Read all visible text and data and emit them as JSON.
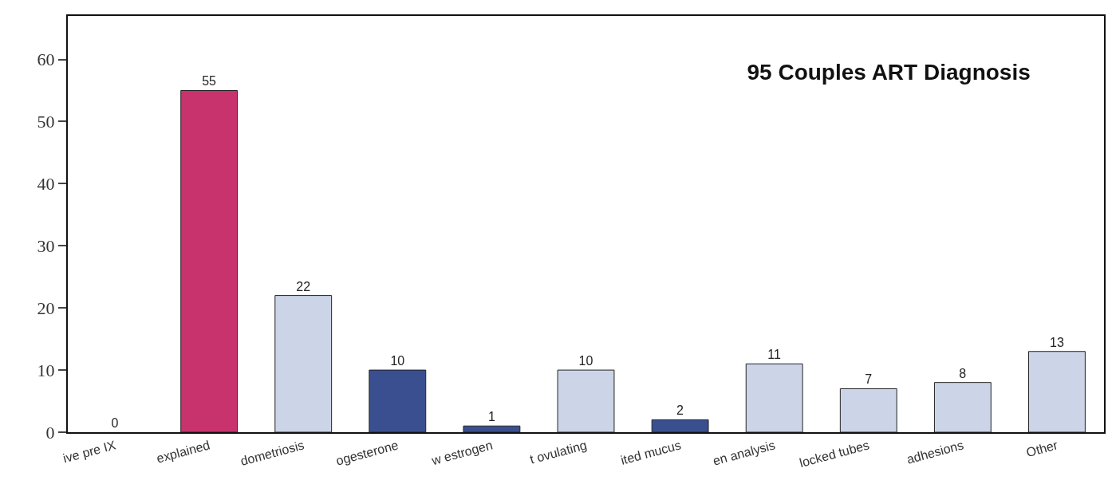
{
  "chart_data": {
    "type": "bar",
    "title": "95 Couples ART Diagnosis",
    "categories": [
      "ive pre IX",
      "explained",
      "dometriosis",
      "ogesterone",
      "w estrogen",
      "t ovulating",
      "ited mucus",
      "en analysis",
      "locked tubes",
      "adhesions",
      "Other"
    ],
    "values": [
      0,
      55,
      22,
      10,
      1,
      10,
      2,
      11,
      7,
      8,
      13
    ],
    "colors": [
      "#ccd5e8",
      "#c8336e",
      "#ccd5e8",
      "#3a4f8f",
      "#3a4f8f",
      "#ccd5e8",
      "#3a4f8f",
      "#ccd5e8",
      "#ccd5e8",
      "#ccd5e8",
      "#ccd5e8"
    ],
    "data_labels": true,
    "ylim": [
      0,
      67
    ],
    "yticks": [
      0,
      10,
      20,
      30,
      40,
      50,
      60
    ],
    "grid": false
  }
}
